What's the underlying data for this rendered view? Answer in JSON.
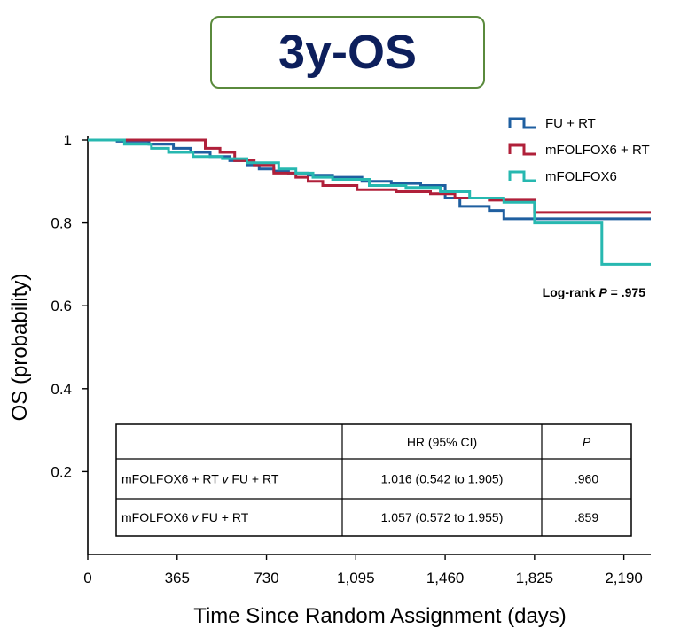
{
  "title": "3y-OS",
  "chart_data": {
    "type": "line",
    "subtype": "kaplan-meier",
    "xlabel": "Time Since Random Assignment (days)",
    "ylabel": "OS (probability)",
    "xlim": [
      0,
      2300
    ],
    "ylim": [
      0,
      1
    ],
    "xticks": [
      0,
      365,
      730,
      1095,
      1460,
      1825,
      2190
    ],
    "xtick_labels": [
      "0",
      "365",
      "730",
      "1,095",
      "1,460",
      "1,825",
      "2,190"
    ],
    "yticks": [
      0.2,
      0.4,
      0.6,
      0.8,
      1
    ],
    "ytick_labels": [
      "0.2",
      "0.4",
      "0.6",
      "0.8",
      "1"
    ],
    "legend_position": "top-right",
    "series": [
      {
        "name": "FU + RT",
        "color": "#1f5fa0",
        "x": [
          0,
          120,
          250,
          350,
          420,
          500,
          580,
          650,
          700,
          760,
          820,
          900,
          1000,
          1120,
          1240,
          1360,
          1460,
          1520,
          1640,
          1700,
          1825,
          2300
        ],
        "y": [
          1.0,
          0.997,
          0.99,
          0.98,
          0.97,
          0.96,
          0.95,
          0.94,
          0.93,
          0.925,
          0.92,
          0.915,
          0.91,
          0.9,
          0.895,
          0.89,
          0.86,
          0.84,
          0.83,
          0.81,
          0.81,
          0.81
        ]
      },
      {
        "name": "mFOLFOX6 + RT",
        "color": "#b0203a",
        "x": [
          0,
          450,
          480,
          540,
          600,
          680,
          760,
          850,
          900,
          960,
          1100,
          1260,
          1400,
          1500,
          1640,
          1825,
          2300
        ],
        "y": [
          1.0,
          1.0,
          0.98,
          0.97,
          0.95,
          0.94,
          0.92,
          0.91,
          0.9,
          0.89,
          0.88,
          0.875,
          0.87,
          0.86,
          0.855,
          0.825,
          0.825
        ]
      },
      {
        "name": "mFOLFOX6",
        "color": "#27b8b0",
        "x": [
          0,
          150,
          260,
          330,
          430,
          550,
          650,
          780,
          850,
          920,
          1000,
          1150,
          1300,
          1440,
          1560,
          1700,
          1825,
          1960,
          2100,
          2300
        ],
        "y": [
          1.0,
          0.99,
          0.98,
          0.97,
          0.96,
          0.955,
          0.945,
          0.93,
          0.92,
          0.91,
          0.905,
          0.89,
          0.885,
          0.875,
          0.86,
          0.85,
          0.8,
          0.8,
          0.7,
          0.7
        ]
      }
    ],
    "annotation": {
      "prefix": "Log-rank ",
      "italic": "P",
      "suffix": " = .975"
    },
    "table": {
      "headers": [
        "",
        "HR (95% CI)",
        "P"
      ],
      "rows": [
        {
          "label_a": "mFOLFOX6 + RT ",
          "label_v": "v",
          "label_b": " FU + RT",
          "hr": "1.016 (0.542 to 1.905)",
          "p": ".960"
        },
        {
          "label_a": "mFOLFOX6 ",
          "label_v": "v",
          "label_b": " FU + RT",
          "hr": "1.057 (0.572 to 1.955)",
          "p": ".859"
        }
      ]
    }
  }
}
